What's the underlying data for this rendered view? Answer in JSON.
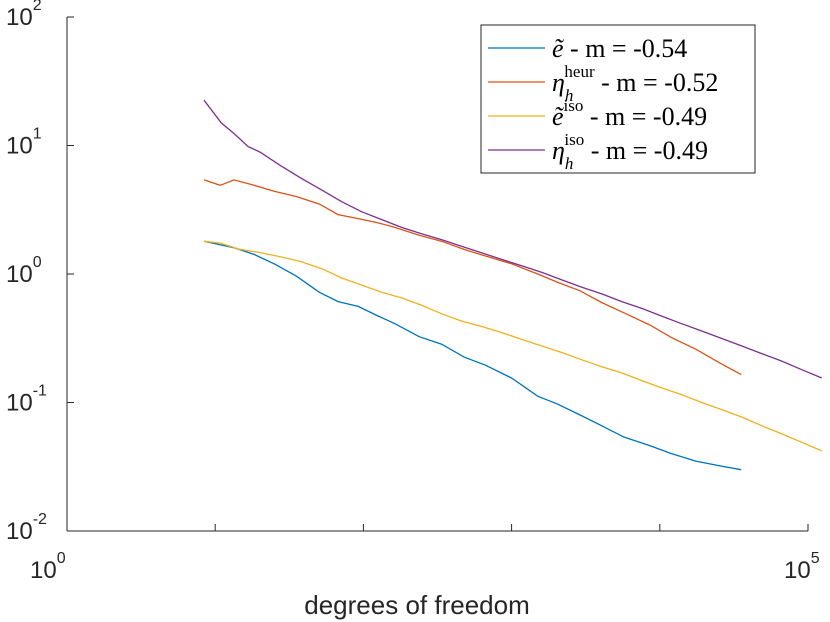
{
  "chart_data": {
    "type": "line",
    "xlabel": "degrees of freedom",
    "ylabel": "",
    "title": "",
    "xscale": "log",
    "yscale": "log",
    "xlim": [
      1,
      100000
    ],
    "ylim": [
      0.01,
      100
    ],
    "grid": false,
    "legend_position": "top-right",
    "x_ticks": [
      {
        "base": "10",
        "exp": "0"
      },
      {
        "base": "10",
        "exp": "5"
      }
    ],
    "y_ticks": [
      {
        "value": 0.01,
        "base": "10",
        "exp": "-2"
      },
      {
        "value": 0.1,
        "base": "10",
        "exp": "-1"
      },
      {
        "value": 1,
        "base": "10",
        "exp": "0"
      },
      {
        "value": 10,
        "base": "10",
        "exp": "1"
      },
      {
        "value": 100,
        "base": "10",
        "exp": "2"
      }
    ],
    "series": [
      {
        "key": "e_tilde",
        "legend": {
          "sym": "ẽ",
          "sup": "",
          "sub": "",
          "rest": " - m = -0.54"
        },
        "color": "#0072BD",
        "x": [
          8.4,
          10.8,
          13.4,
          18.3,
          25.0,
          35.5,
          50.5,
          67.5,
          92.2,
          126,
          164,
          238,
          336,
          480,
          667,
          1000,
          1500,
          2050,
          2900,
          4050,
          5700,
          8600,
          12000,
          17500,
          26000,
          35400
        ],
        "y": [
          1.8,
          1.69,
          1.6,
          1.42,
          1.2,
          0.96,
          0.72,
          0.61,
          0.56,
          0.47,
          0.41,
          0.325,
          0.285,
          0.225,
          0.195,
          0.155,
          0.112,
          0.097,
          0.08,
          0.066,
          0.054,
          0.046,
          0.04,
          0.035,
          0.032,
          0.03
        ]
      },
      {
        "key": "eta_heur",
        "legend": {
          "sym": "η",
          "sup": "heur",
          "sub": "h",
          "rest": " - m = -0.52"
        },
        "color": "#D95319",
        "x": [
          8.4,
          10.8,
          13.4,
          18.3,
          25.0,
          35.5,
          50.5,
          67.5,
          92.2,
          126,
          164,
          238,
          336,
          480,
          667,
          1000,
          1500,
          2050,
          2900,
          4050,
          5700,
          8600,
          12000,
          17500,
          26000,
          35400
        ],
        "y": [
          5.4,
          4.9,
          5.4,
          4.9,
          4.4,
          4.0,
          3.5,
          2.9,
          2.7,
          2.5,
          2.3,
          2.0,
          1.8,
          1.55,
          1.38,
          1.2,
          1.0,
          0.86,
          0.74,
          0.6,
          0.5,
          0.4,
          0.32,
          0.26,
          0.2,
          0.165
        ]
      },
      {
        "key": "e_iso",
        "legend": {
          "sym": "ẽ",
          "sup": "iso",
          "sub": "",
          "rest": " - m = -0.49"
        },
        "color": "#EDB120",
        "x": [
          8.4,
          11.0,
          14.5,
          20.0,
          27.5,
          37.7,
          52.4,
          71.4,
          97.5,
          133,
          182,
          248,
          338,
          461,
          629,
          858,
          1170,
          1600,
          2180,
          2980,
          4060,
          5540,
          7560,
          10300,
          14100,
          19200,
          26200,
          35800,
          48800,
          66600,
          90800,
          124000
        ],
        "y": [
          1.8,
          1.73,
          1.56,
          1.47,
          1.36,
          1.25,
          1.1,
          0.93,
          0.82,
          0.72,
          0.65,
          0.57,
          0.49,
          0.43,
          0.39,
          0.35,
          0.31,
          0.275,
          0.245,
          0.215,
          0.19,
          0.17,
          0.148,
          0.13,
          0.115,
          0.1,
          0.088,
          0.077,
          0.066,
          0.057,
          0.049,
          0.042
        ]
      },
      {
        "key": "eta_iso",
        "legend": {
          "sym": "η",
          "sup": "iso",
          "sub": "h",
          "rest": " - m = -0.49"
        },
        "color": "#7E2F8E",
        "x": [
          8.4,
          11.0,
          13.4,
          16.7,
          20.0,
          27.5,
          37.7,
          52.4,
          71.4,
          97.5,
          133,
          182,
          248,
          338,
          461,
          629,
          858,
          1170,
          1600,
          2180,
          2980,
          4060,
          5540,
          7560,
          10300,
          14100,
          19200,
          26200,
          35800,
          48800,
          66600,
          90800,
          124000
        ],
        "y": [
          22.5,
          15.0,
          12.4,
          9.8,
          8.9,
          7.0,
          5.6,
          4.5,
          3.65,
          3.05,
          2.65,
          2.3,
          2.05,
          1.85,
          1.64,
          1.46,
          1.3,
          1.16,
          1.03,
          0.9,
          0.79,
          0.7,
          0.61,
          0.54,
          0.47,
          0.41,
          0.36,
          0.315,
          0.275,
          0.24,
          0.21,
          0.18,
          0.155
        ]
      }
    ]
  }
}
